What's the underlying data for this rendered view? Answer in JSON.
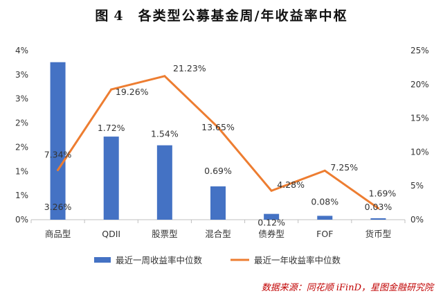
{
  "figure": {
    "label": "图",
    "number": "4",
    "text": "各类型公募基金周/年收益率中枢"
  },
  "source": "数据来源：同花顺 iFinD，星图金融研究院",
  "colors": {
    "bar": "#4472c4",
    "line": "#ed7d31",
    "axis": "#bfbfbf",
    "text": "#333333",
    "source": "#c00000"
  },
  "chart_data": {
    "type": "bar",
    "categories": [
      "商品型",
      "QDII",
      "股票型",
      "混合型",
      "债券型",
      "FOF",
      "货币型"
    ],
    "series": [
      {
        "name": "最近一周收益率中位数",
        "type": "bar",
        "axis": "left",
        "values": [
          3.26,
          1.72,
          1.54,
          0.69,
          0.12,
          0.08,
          0.03
        ],
        "labels": [
          "3.26%",
          "1.72%",
          "1.54%",
          "0.69%",
          "0.12%",
          "0.08%",
          "0.03%"
        ]
      },
      {
        "name": "最近一年收益率中位数",
        "type": "line",
        "axis": "right",
        "values": [
          7.34,
          19.26,
          21.23,
          13.65,
          4.28,
          7.25,
          1.69
        ],
        "labels": [
          "7.34%",
          "19.26%",
          "21.23%",
          "13.65%",
          "4.28%",
          "7.25%",
          "1.69%"
        ]
      }
    ],
    "left_axis": {
      "ylim": [
        0,
        3.5
      ],
      "ticks": [
        0,
        0.5,
        1,
        1.5,
        2,
        2.5,
        3,
        3.5
      ],
      "tick_labels": [
        "0%",
        "1%",
        "1%",
        "2%",
        "2%",
        "3%",
        "3%",
        "4%"
      ]
    },
    "right_axis": {
      "ylim": [
        0,
        25
      ],
      "ticks": [
        0,
        5,
        10,
        15,
        20,
        25
      ],
      "tick_labels": [
        "0%",
        "5%",
        "10%",
        "15%",
        "20%",
        "25%"
      ]
    },
    "grid": false,
    "legend_position": "bottom"
  }
}
